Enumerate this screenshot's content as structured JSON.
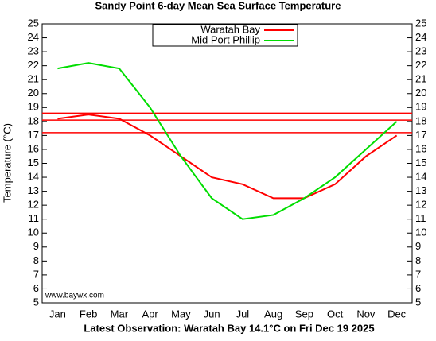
{
  "chart_data": {
    "type": "line",
    "title": "Sandy Point 6-day Mean Sea Surface Temperature",
    "ylabel": "Temperature (°C)",
    "footer": "Latest Observation: Waratah Bay 14.1°C on Fri Dec 19 2025",
    "watermark": "www.baywx.com",
    "categories": [
      "Jan",
      "Feb",
      "Mar",
      "Apr",
      "May",
      "Jun",
      "Jul",
      "Aug",
      "Sep",
      "Oct",
      "Nov",
      "Dec"
    ],
    "series": [
      {
        "name": "Waratah Bay",
        "color": "#ff0000",
        "values": [
          18.2,
          18.5,
          18.2,
          17,
          15.5,
          14,
          13.5,
          12.5,
          12.5,
          13.5,
          15.5,
          17
        ]
      },
      {
        "name": "Mid Port Phillip",
        "color": "#00dd00",
        "values": [
          21.8,
          22.2,
          21.8,
          19,
          15.5,
          12.5,
          11,
          11.3,
          12.5,
          14,
          16,
          18
        ]
      }
    ],
    "reference_lines": {
      "color": "#ff0000",
      "values": [
        17.2,
        18.1,
        18.6
      ]
    },
    "ylim": [
      5,
      25
    ],
    "yticks": [
      5,
      6,
      7,
      8,
      9,
      10,
      11,
      12,
      13,
      14,
      15,
      16,
      17,
      18,
      19,
      20,
      21,
      22,
      23,
      24,
      25
    ],
    "legend": "top"
  }
}
